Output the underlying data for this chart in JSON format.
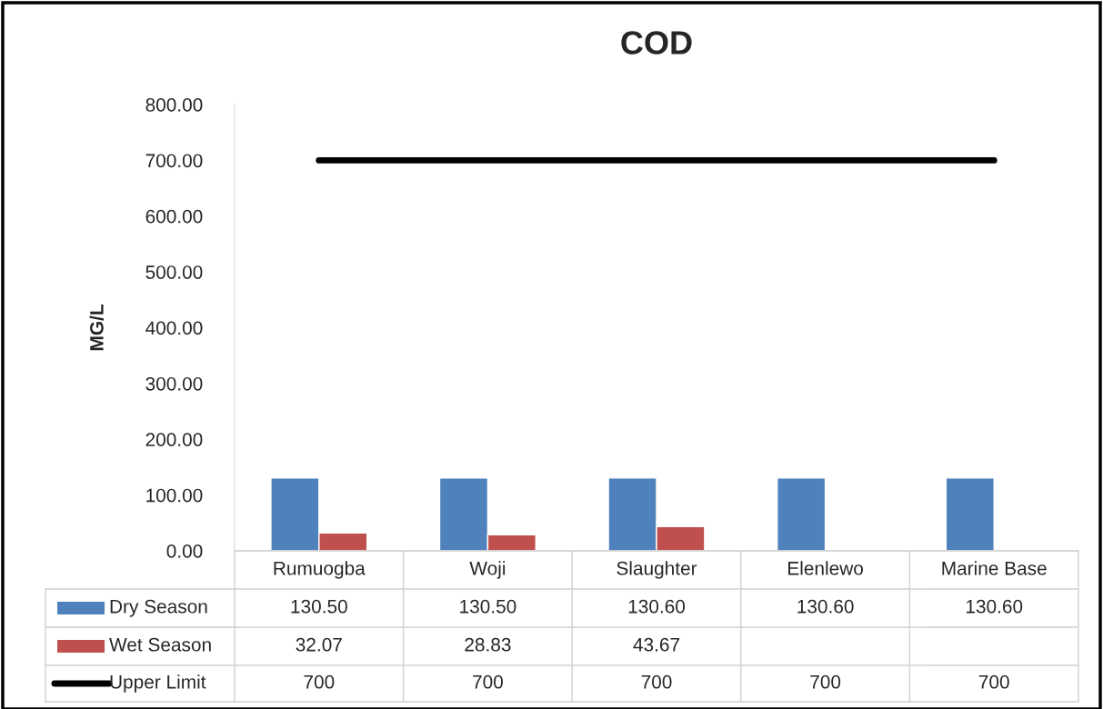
{
  "chart_data": {
    "type": "bar",
    "title": "COD",
    "ylabel": "MG/L",
    "categories": [
      "Rumuogba",
      "Woji",
      "Slaughter",
      "Elenlewo",
      "Marine Base"
    ],
    "series": [
      {
        "name": "Dry Season",
        "color": "#4f81bd",
        "values": [
          130.5,
          130.5,
          130.6,
          130.6,
          130.6
        ],
        "value_labels": [
          "130.50",
          "130.50",
          "130.60",
          "130.60",
          "130.60"
        ]
      },
      {
        "name": "Wet Season",
        "color": "#c0504d",
        "values": [
          32.07,
          28.83,
          43.67,
          null,
          null
        ],
        "value_labels": [
          "32.07",
          "28.83",
          "43.67",
          null,
          null
        ]
      },
      {
        "name": "Upper Limit",
        "type": "line",
        "color": "#000000",
        "values": [
          700,
          700,
          700,
          700,
          700
        ],
        "value_labels": [
          "700",
          "700",
          "700",
          "700",
          "700"
        ]
      }
    ],
    "ylim": [
      0,
      800
    ],
    "yticks": [
      {
        "value": 0,
        "label": "0.00"
      },
      {
        "value": 100,
        "label": "100.00"
      },
      {
        "value": 200,
        "label": "200.00"
      },
      {
        "value": 300,
        "label": "300.00"
      },
      {
        "value": 400,
        "label": "400.00"
      },
      {
        "value": 500,
        "label": "500.00"
      },
      {
        "value": 600,
        "label": "600.00"
      },
      {
        "value": 700,
        "label": "700.00"
      },
      {
        "value": 800,
        "label": "800.00"
      }
    ],
    "legend": "bottom",
    "grid": false
  }
}
